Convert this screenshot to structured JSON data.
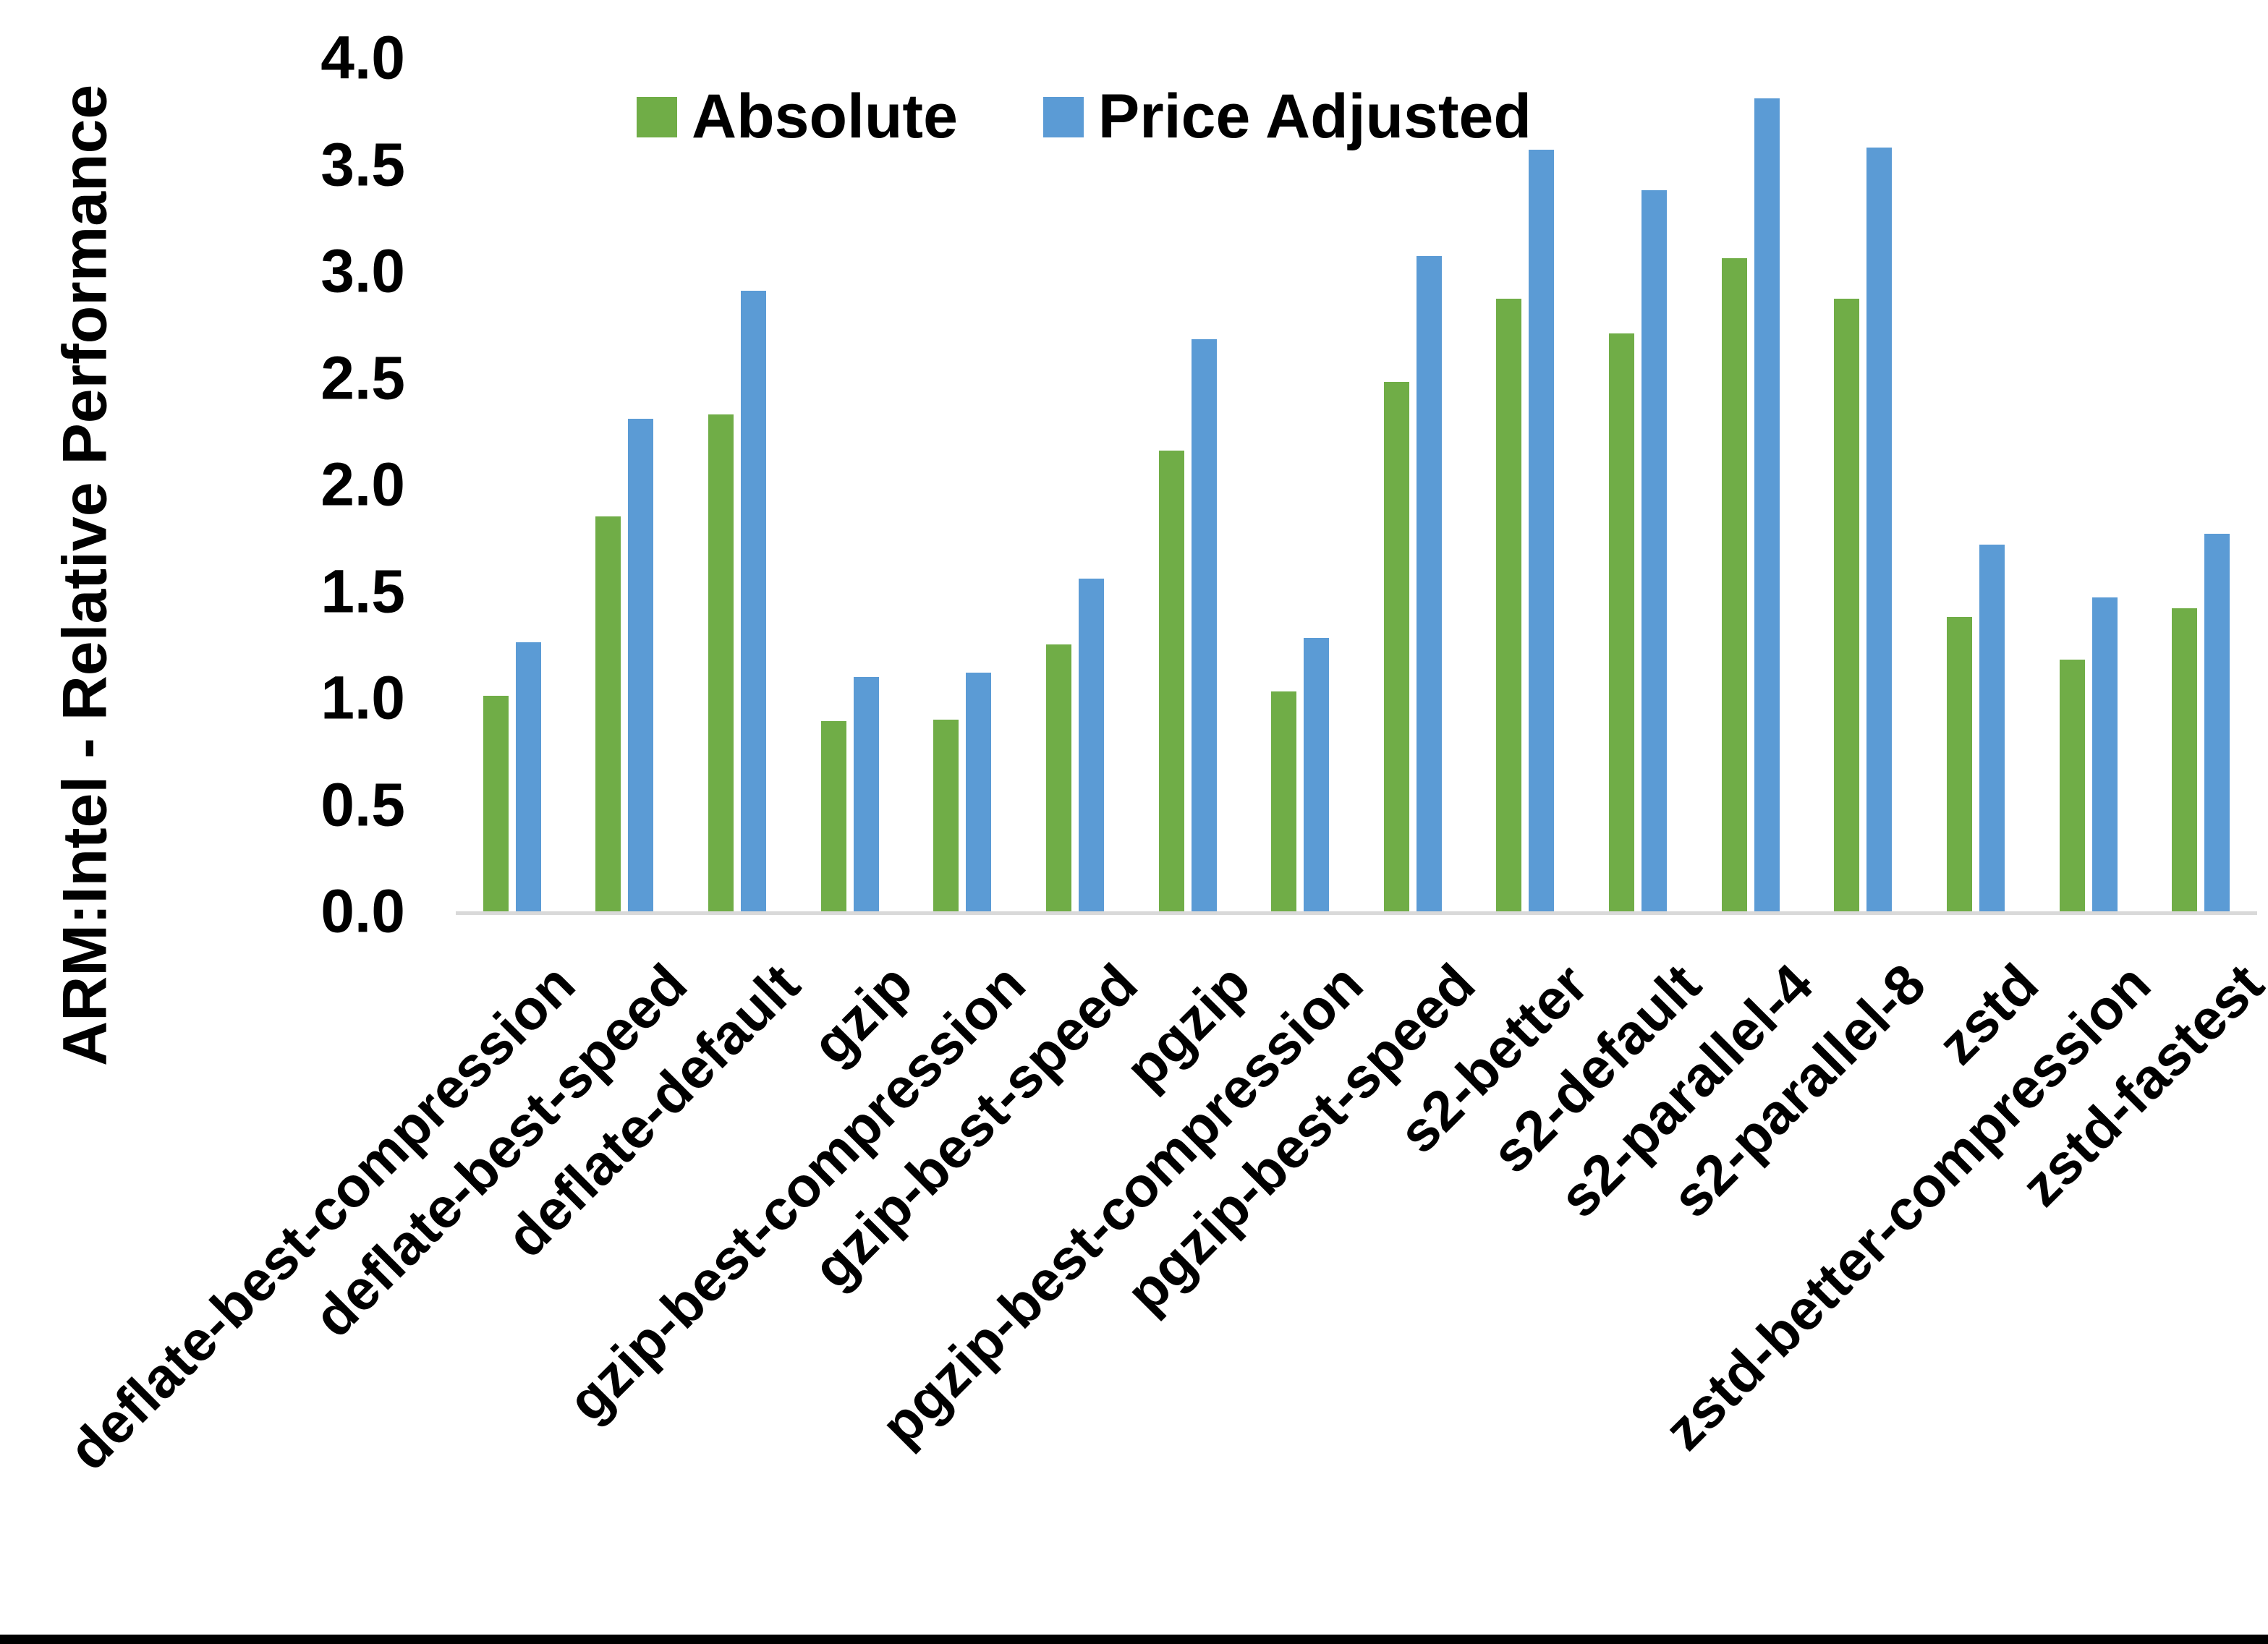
{
  "chart_data": {
    "type": "bar",
    "title": "",
    "xlabel": "",
    "ylabel": "ARM:Intel - Relative Performance",
    "ylim": [
      0.0,
      4.0
    ],
    "ytick_step": 0.5,
    "yticks": [
      "4.0",
      "3.5",
      "3.0",
      "2.5",
      "2.0",
      "1.5",
      "1.0",
      "0.5",
      "0.0"
    ],
    "grid": false,
    "legend_position": "top-center",
    "categories": [
      "deflate-best-compression",
      "deflate-best-speed",
      "deflate-default",
      "gzip",
      "gzip-best-compression",
      "gzip-best-speed",
      "pgzip",
      "pgzip-best-compression",
      "pgzip-best-speed",
      "s2-better",
      "s2-default",
      "s2-parallel-4",
      "s2-parallel-8",
      "zstd",
      "zstd-better-compression",
      "zstd-fastest"
    ],
    "series": [
      {
        "name": "Absolute",
        "color": "#70AD47",
        "values": [
          1.01,
          1.85,
          2.33,
          0.89,
          0.9,
          1.25,
          2.16,
          1.03,
          2.48,
          2.87,
          2.71,
          3.06,
          2.87,
          1.38,
          1.18,
          1.42
        ]
      },
      {
        "name": "Price Adjusted",
        "color": "#5B9BD5",
        "values": [
          1.26,
          2.31,
          2.91,
          1.1,
          1.12,
          1.56,
          2.68,
          1.28,
          3.07,
          3.57,
          3.38,
          3.81,
          3.58,
          1.72,
          1.47,
          1.77
        ]
      }
    ],
    "axis_line_color": "#D9D9D9",
    "bottom_border_color": "#000000"
  }
}
